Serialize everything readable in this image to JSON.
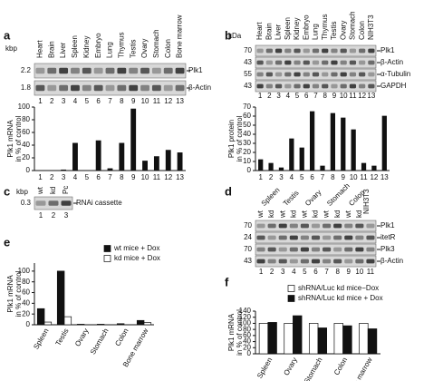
{
  "panel_labels": [
    "a",
    "b",
    "c",
    "d",
    "e",
    "f"
  ],
  "blot_a": {
    "unit": "kbp",
    "lanes": [
      "Heart",
      "Brain",
      "Liver",
      "Spleen",
      "Kidney",
      "Embryo",
      "Lung",
      "Thymus",
      "Testis",
      "Ovary",
      "Stomach",
      "Colon",
      "Bone marrow"
    ],
    "markers": [
      "2.2",
      "1.8"
    ],
    "bands": [
      "Plk1",
      "β-Actin"
    ],
    "numbers": [
      "1",
      "2",
      "3",
      "4",
      "5",
      "6",
      "7",
      "8",
      "9",
      "10",
      "11",
      "12",
      "13"
    ]
  },
  "blot_b": {
    "unit": "kDa",
    "lanes": [
      "Heart",
      "Brain",
      "Liver",
      "Spleen",
      "Kidney",
      "Embryo",
      "Lung",
      "Thymus",
      "Testis",
      "Ovary",
      "Stomach",
      "Colon",
      "NIH3T3"
    ],
    "markers": [
      "70",
      "43",
      "55",
      "43"
    ],
    "bands": [
      "Plk1",
      "β-Actin",
      "α-Tubulin",
      "GAPDH"
    ],
    "numbers": [
      "1",
      "2",
      "3",
      "4",
      "5",
      "6",
      "7",
      "8",
      "9",
      "10",
      "11",
      "12",
      "13"
    ]
  },
  "blot_c": {
    "unit": "kbp",
    "lanes": [
      "wt",
      "kd",
      "Pc"
    ],
    "markers": [
      "0.3"
    ],
    "bands": [
      "RNAi cassette"
    ],
    "numbers": [
      "1",
      "2",
      "3"
    ]
  },
  "blot_d": {
    "tissues": [
      "Spleen",
      "Testis",
      "Ovary",
      "Stomach",
      "Colon",
      "NIH3T3"
    ],
    "genotypes": [
      "wt",
      "kd"
    ],
    "markers": [
      "70",
      "24",
      "70",
      "43"
    ],
    "bands": [
      "Plk1",
      "itetR",
      "Plk3",
      "β-Actin"
    ],
    "numbers": [
      "1",
      "2",
      "3",
      "4",
      "5",
      "6",
      "7",
      "8",
      "9",
      "10",
      "11"
    ]
  },
  "chart_data": [
    {
      "type": "bar",
      "ylabel": [
        "Plk1 mRNA",
        "in % of control"
      ],
      "categories": [
        "1",
        "2",
        "3",
        "4",
        "5",
        "6",
        "7",
        "8",
        "9",
        "10",
        "11",
        "12",
        "13"
      ],
      "values": [
        0,
        0,
        1,
        43,
        0,
        47,
        3,
        43,
        97,
        15,
        22,
        32,
        28
      ],
      "color": "#111111",
      "ylim": [
        0,
        100
      ],
      "yticks": [
        0,
        20,
        40,
        60,
        80,
        100
      ]
    },
    {
      "type": "bar",
      "ylabel": [
        "Plk1 protein",
        "in % of control"
      ],
      "categories": [
        "1",
        "2",
        "3",
        "4",
        "5",
        "6",
        "7",
        "8",
        "9",
        "10",
        "11",
        "12",
        "13"
      ],
      "values": [
        12,
        8,
        3,
        35,
        25,
        65,
        5,
        63,
        58,
        45,
        8,
        5,
        60
      ],
      "color": "#111111",
      "ylim": [
        0,
        70
      ],
      "yticks": [
        0,
        10,
        20,
        30,
        40,
        50,
        60,
        70
      ]
    },
    {
      "type": "bar",
      "ylabel": [
        "Plk1 mRNA",
        "in % of control"
      ],
      "categories": [
        "Spleen",
        "Testis",
        "Ovary",
        "Stomach",
        "Colon",
        "Bone marrow"
      ],
      "series": [
        {
          "name": "wt mice + Dox",
          "color": "#111111",
          "values": [
            30,
            100,
            1,
            1,
            2,
            8
          ]
        },
        {
          "name": "kd mice + Dox",
          "color": "#ffffff",
          "values": [
            5,
            15,
            0,
            0,
            0,
            4
          ]
        }
      ],
      "ylim": [
        0,
        115
      ],
      "yticks": [
        0,
        20,
        40,
        60,
        80,
        100
      ]
    },
    {
      "type": "bar",
      "ylabel": [
        "Plk1 mRNA",
        "in % of control"
      ],
      "categories": [
        "Spleen",
        "Ovary",
        "Stomach",
        "Colon",
        "Bone marrow"
      ],
      "series": [
        {
          "name": "shRNA/Luc kd mice−Dox",
          "color": "#ffffff",
          "values": [
            100,
            100,
            100,
            100,
            100
          ]
        },
        {
          "name": "shRNA/Luc kd mice + Dox",
          "color": "#111111",
          "values": [
            103,
            125,
            85,
            92,
            82
          ]
        }
      ],
      "ylim": [
        0,
        140
      ],
      "yticks": [
        0,
        20,
        40,
        60,
        80,
        100,
        120,
        140
      ]
    }
  ]
}
